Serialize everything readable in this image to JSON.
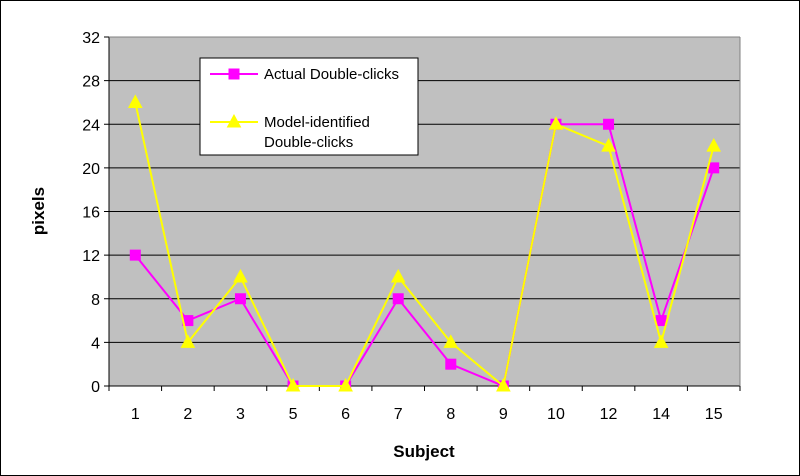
{
  "chart_data": {
    "type": "line",
    "title": "",
    "xlabel": "Subject",
    "ylabel": "pixels",
    "categories": [
      "1",
      "2",
      "3",
      "5",
      "6",
      "7",
      "8",
      "9",
      "10",
      "12",
      "14",
      "15"
    ],
    "ylim": [
      0,
      32
    ],
    "yticks": [
      0,
      4,
      8,
      12,
      16,
      20,
      24,
      28,
      32
    ],
    "grid": true,
    "legend": "top-left",
    "series": [
      {
        "name": "Actual Double-clicks",
        "values": [
          12,
          6,
          8,
          0,
          0,
          8,
          2,
          0,
          24,
          24,
          6,
          20
        ],
        "color": "#FF00FF",
        "marker": "square"
      },
      {
        "name": "Model-identified Double-clicks",
        "values": [
          26,
          4,
          10,
          0,
          0,
          10,
          4,
          0,
          24,
          22,
          4,
          22
        ],
        "color": "#FFFF00",
        "marker": "triangle"
      }
    ],
    "plot_background": "#C0C0C0"
  }
}
